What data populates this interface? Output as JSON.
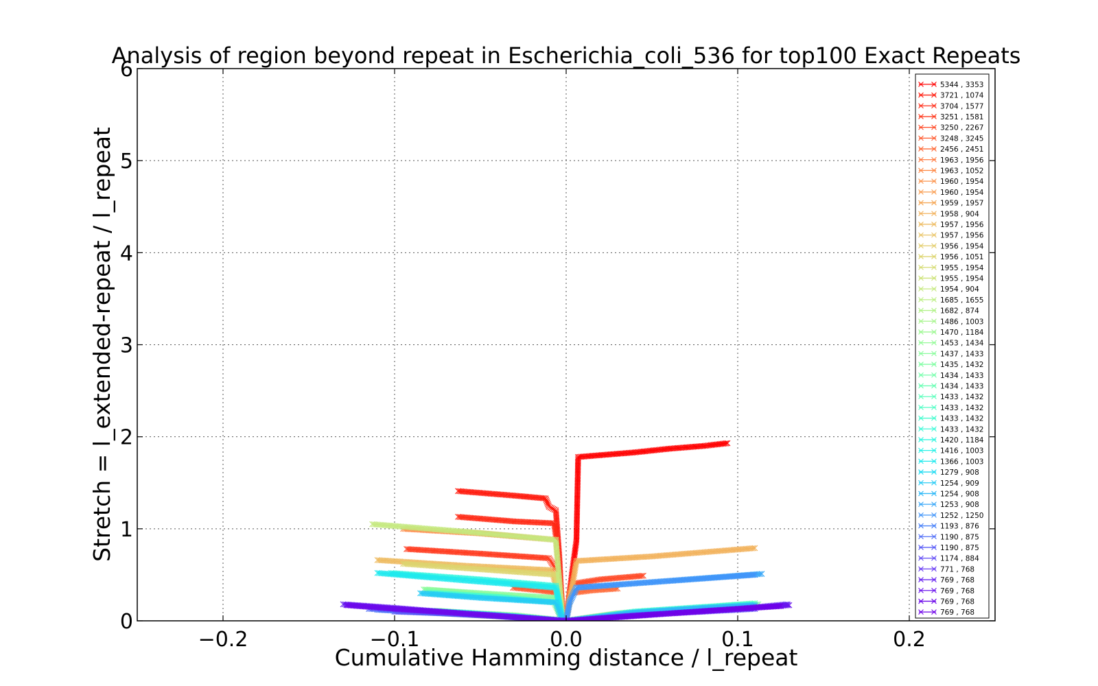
{
  "chart_data": {
    "type": "line",
    "title": "Analysis of region beyond repeat in Escherichia_coli_536 for top100 Exact Repeats",
    "xlabel": "Cumulative Hamming distance / l_repeat",
    "ylabel": "Stretch =  l_extended-repeat / l_repeat",
    "xlim": [
      -0.25,
      0.25
    ],
    "ylim": [
      0,
      6
    ],
    "xticks": [
      -0.2,
      -0.1,
      0.0,
      0.1,
      0.2
    ],
    "xtick_labels": [
      "−0.2",
      "−0.1",
      "0.0",
      "0.1",
      "0.2"
    ],
    "yticks": [
      0,
      1,
      2,
      3,
      4,
      5,
      6
    ],
    "ytick_labels": [
      "0",
      "1",
      "2",
      "3",
      "4",
      "5",
      "6"
    ],
    "grid": true,
    "legend_position": "right",
    "marker": "x",
    "series": [
      {
        "name": "5344 , 3353",
        "color": "#ff0000",
        "points": [
          [
            0.0,
            0.0
          ],
          [
            0.002,
            0.3
          ],
          [
            0.004,
            0.6
          ],
          [
            0.006,
            0.87
          ],
          [
            0.007,
            1.78
          ],
          [
            0.02,
            1.8
          ],
          [
            0.04,
            1.83
          ],
          [
            0.06,
            1.87
          ],
          [
            0.08,
            1.9
          ],
          [
            0.094,
            1.93
          ]
        ]
      },
      {
        "name": "3721 , 1074",
        "color": "#ff1a0d",
        "points": [
          [
            -0.002,
            0.0
          ],
          [
            -0.004,
            0.7
          ],
          [
            -0.006,
            1.2
          ],
          [
            -0.01,
            1.24
          ],
          [
            -0.012,
            1.33
          ],
          [
            -0.03,
            1.36
          ],
          [
            -0.063,
            1.41
          ]
        ]
      },
      {
        "name": "3704 , 1577",
        "color": "#ff2a15",
        "points": [
          [
            -0.002,
            0.0
          ],
          [
            -0.005,
            0.8
          ],
          [
            -0.007,
            1.06
          ],
          [
            -0.03,
            1.08
          ],
          [
            -0.063,
            1.13
          ]
        ]
      },
      {
        "name": "3251 , 1581",
        "color": "#ff3a1e",
        "points": [
          [
            -0.002,
            0.0
          ],
          [
            -0.004,
            0.5
          ],
          [
            -0.01,
            0.68
          ],
          [
            -0.05,
            0.73
          ],
          [
            -0.093,
            0.78
          ]
        ]
      },
      {
        "name": "3250 , 2267",
        "color": "#ff4a27",
        "points": [
          [
            0.0,
            0.0
          ],
          [
            0.003,
            0.4
          ],
          [
            0.02,
            0.45
          ],
          [
            0.045,
            0.49
          ]
        ]
      },
      {
        "name": "3248 , 3245",
        "color": "#ff5a2f",
        "points": [
          [
            -0.001,
            0.0
          ],
          [
            -0.003,
            0.3
          ],
          [
            -0.015,
            0.33
          ],
          [
            -0.031,
            0.36
          ]
        ]
      },
      {
        "name": "2456 , 2451",
        "color": "#ff6a38",
        "points": [
          [
            0.0,
            0.0
          ],
          [
            0.002,
            0.3
          ],
          [
            0.015,
            0.33
          ],
          [
            0.03,
            0.35
          ]
        ]
      },
      {
        "name": "1963 , 1956",
        "color": "#ff7a40",
        "points": [
          [
            0.0,
            0.0
          ],
          [
            0.02,
            0.05
          ],
          [
            0.04,
            0.07
          ],
          [
            0.064,
            0.09
          ]
        ]
      },
      {
        "name": "1963 , 1052",
        "color": "#fe8a48",
        "points": [
          [
            -0.002,
            0.0
          ],
          [
            -0.006,
            0.88
          ],
          [
            -0.05,
            0.95
          ],
          [
            -0.095,
            1.0
          ]
        ]
      },
      {
        "name": "1960 , 1954",
        "color": "#fc944d",
        "points": [
          [
            0.0,
            0.0
          ],
          [
            -0.02,
            0.03
          ],
          [
            -0.05,
            0.06
          ],
          [
            -0.07,
            0.08
          ]
        ]
      },
      {
        "name": "1960 , 1954",
        "color": "#f99e52",
        "points": [
          [
            0.0,
            0.0
          ],
          [
            0.02,
            0.05
          ],
          [
            0.04,
            0.08
          ],
          [
            0.065,
            0.1
          ]
        ]
      },
      {
        "name": "1959 , 1957",
        "color": "#f6a857",
        "points": [
          [
            0.0,
            0.0
          ],
          [
            -0.02,
            0.03
          ],
          [
            -0.045,
            0.06
          ],
          [
            -0.068,
            0.08
          ]
        ]
      },
      {
        "name": "1958 , 904",
        "color": "#f2b25c",
        "points": [
          [
            0.0,
            0.0
          ],
          [
            0.006,
            0.65
          ],
          [
            0.05,
            0.7
          ],
          [
            0.11,
            0.79
          ]
        ]
      },
      {
        "name": "1957 , 1956",
        "color": "#eebb61",
        "points": [
          [
            -0.002,
            0.0
          ],
          [
            -0.008,
            0.55
          ],
          [
            -0.06,
            0.6
          ],
          [
            -0.11,
            0.66
          ]
        ]
      },
      {
        "name": "1957 , 1956",
        "color": "#e9c466",
        "points": [
          [
            0.0,
            0.0
          ],
          [
            0.03,
            0.08
          ],
          [
            0.06,
            0.11
          ],
          [
            0.09,
            0.14
          ]
        ]
      },
      {
        "name": "1956 , 1954",
        "color": "#e3cd6b",
        "points": [
          [
            0.0,
            0.0
          ],
          [
            -0.03,
            0.04
          ],
          [
            -0.06,
            0.07
          ],
          [
            -0.09,
            0.1
          ]
        ]
      },
      {
        "name": "1956 , 1051",
        "color": "#ddd570",
        "points": [
          [
            -0.002,
            0.0
          ],
          [
            -0.006,
            0.5
          ],
          [
            -0.05,
            0.56
          ],
          [
            -0.095,
            0.62
          ]
        ]
      },
      {
        "name": "1955 , 1954",
        "color": "#d6dc75",
        "points": [
          [
            0.0,
            0.0
          ],
          [
            0.03,
            0.07
          ],
          [
            0.06,
            0.1
          ],
          [
            0.095,
            0.13
          ]
        ]
      },
      {
        "name": "1955 , 1954",
        "color": "#cee37a",
        "points": [
          [
            0.0,
            0.0
          ],
          [
            -0.03,
            0.05
          ],
          [
            -0.06,
            0.08
          ],
          [
            -0.085,
            0.1
          ]
        ]
      },
      {
        "name": "1954 , 904",
        "color": "#c5e97f",
        "points": [
          [
            -0.002,
            0.0
          ],
          [
            -0.006,
            0.88
          ],
          [
            -0.06,
            0.97
          ],
          [
            -0.113,
            1.05
          ]
        ]
      },
      {
        "name": "1685 , 1655",
        "color": "#bcee84",
        "points": [
          [
            0.0,
            0.0
          ],
          [
            0.03,
            0.08
          ],
          [
            0.07,
            0.12
          ],
          [
            0.1,
            0.15
          ]
        ]
      },
      {
        "name": "1682 , 874",
        "color": "#b2f289",
        "points": [
          [
            0.0,
            0.0
          ],
          [
            -0.03,
            0.06
          ],
          [
            -0.06,
            0.09
          ],
          [
            -0.075,
            0.11
          ]
        ]
      },
      {
        "name": "1486 , 1003",
        "color": "#a8f58e",
        "points": [
          [
            -0.002,
            0.0
          ],
          [
            -0.007,
            0.2
          ],
          [
            -0.04,
            0.27
          ],
          [
            -0.082,
            0.34
          ]
        ]
      },
      {
        "name": "1470 , 1184",
        "color": "#9ef893",
        "points": [
          [
            0.0,
            0.0
          ],
          [
            0.04,
            0.08
          ],
          [
            0.08,
            0.13
          ],
          [
            0.11,
            0.17
          ]
        ]
      },
      {
        "name": "1453 , 1434",
        "color": "#94fa98",
        "points": [
          [
            0.0,
            0.0
          ],
          [
            -0.03,
            0.06
          ],
          [
            -0.06,
            0.09
          ],
          [
            -0.08,
            0.1
          ]
        ]
      },
      {
        "name": "1437 , 1433",
        "color": "#8afc9d",
        "points": [
          [
            -0.002,
            0.0
          ],
          [
            -0.006,
            0.25
          ],
          [
            -0.05,
            0.3
          ],
          [
            -0.083,
            0.34
          ]
        ]
      },
      {
        "name": "1435 , 1432",
        "color": "#7ffda2",
        "points": [
          [
            0.0,
            0.0
          ],
          [
            0.04,
            0.09
          ],
          [
            0.08,
            0.14
          ],
          [
            0.112,
            0.18
          ]
        ]
      },
      {
        "name": "1434 , 1433",
        "color": "#74feab",
        "points": [
          [
            0.0,
            0.0
          ],
          [
            -0.03,
            0.05
          ],
          [
            -0.06,
            0.09
          ],
          [
            -0.075,
            0.1
          ]
        ]
      },
      {
        "name": "1434 , 1433",
        "color": "#69feb4",
        "points": [
          [
            -0.002,
            0.0
          ],
          [
            -0.006,
            0.2
          ],
          [
            -0.05,
            0.27
          ],
          [
            -0.08,
            0.31
          ]
        ]
      },
      {
        "name": "1433 , 1432",
        "color": "#5efebd",
        "points": [
          [
            0.0,
            0.0
          ],
          [
            0.04,
            0.1
          ],
          [
            0.08,
            0.15
          ],
          [
            0.11,
            0.19
          ]
        ]
      },
      {
        "name": "1433 , 1432",
        "color": "#53fdc6",
        "points": [
          [
            0.0,
            0.0
          ],
          [
            -0.03,
            0.05
          ],
          [
            -0.06,
            0.08
          ],
          [
            -0.072,
            0.09
          ]
        ]
      },
      {
        "name": "1433 , 1432",
        "color": "#48fbcf",
        "points": [
          [
            -0.002,
            0.0
          ],
          [
            -0.006,
            0.2
          ],
          [
            -0.04,
            0.26
          ],
          [
            -0.078,
            0.3
          ]
        ]
      },
      {
        "name": "1433 , 1432",
        "color": "#3df9d8",
        "points": [
          [
            0.0,
            0.0
          ],
          [
            0.04,
            0.1
          ],
          [
            0.08,
            0.15
          ],
          [
            0.108,
            0.18
          ]
        ]
      },
      {
        "name": "1420 , 1184",
        "color": "#32f5e0",
        "points": [
          [
            -0.002,
            0.0
          ],
          [
            -0.006,
            0.38
          ],
          [
            -0.05,
            0.45
          ],
          [
            -0.102,
            0.52
          ]
        ]
      },
      {
        "name": "1416 , 1003",
        "color": "#27f1e7",
        "points": [
          [
            0.0,
            0.0
          ],
          [
            -0.03,
            0.05
          ],
          [
            -0.06,
            0.09
          ],
          [
            -0.08,
            0.11
          ]
        ]
      },
      {
        "name": "1366 , 1003",
        "color": "#1fe9ee",
        "points": [
          [
            -0.002,
            0.0
          ],
          [
            -0.006,
            0.36
          ],
          [
            -0.06,
            0.44
          ],
          [
            -0.11,
            0.52
          ]
        ]
      },
      {
        "name": "1279 , 908",
        "color": "#1fdbf2",
        "points": [
          [
            0.0,
            0.0
          ],
          [
            0.04,
            0.08
          ],
          [
            0.08,
            0.13
          ],
          [
            0.105,
            0.16
          ]
        ]
      },
      {
        "name": "1254 , 909",
        "color": "#26cbf5",
        "points": [
          [
            -0.002,
            0.0
          ],
          [
            -0.006,
            0.2
          ],
          [
            -0.05,
            0.25
          ],
          [
            -0.085,
            0.3
          ]
        ]
      },
      {
        "name": "1254 , 908",
        "color": "#2fb9f7",
        "points": [
          [
            0.0,
            0.0
          ],
          [
            0.04,
            0.09
          ],
          [
            0.08,
            0.14
          ],
          [
            0.11,
            0.17
          ]
        ]
      },
      {
        "name": "1253 , 908",
        "color": "#38a7f8",
        "points": [
          [
            0.0,
            0.0
          ],
          [
            0.002,
            0.2
          ],
          [
            0.006,
            0.36
          ],
          [
            0.05,
            0.42
          ],
          [
            0.114,
            0.51
          ]
        ]
      },
      {
        "name": "1252 , 1250",
        "color": "#4295f9",
        "points": [
          [
            0.0,
            0.0
          ],
          [
            0.002,
            0.2
          ],
          [
            0.006,
            0.36
          ],
          [
            0.05,
            0.42
          ],
          [
            0.11,
            0.5
          ]
        ]
      },
      {
        "name": "1193 , 876",
        "color": "#4a82f9",
        "points": [
          [
            0.0,
            0.0
          ],
          [
            -0.04,
            0.05
          ],
          [
            -0.08,
            0.09
          ],
          [
            -0.11,
            0.12
          ]
        ]
      },
      {
        "name": "1190 , 875",
        "color": "#526ff8",
        "points": [
          [
            0.0,
            0.0
          ],
          [
            -0.04,
            0.06
          ],
          [
            -0.09,
            0.11
          ],
          [
            -0.115,
            0.13
          ]
        ]
      },
      {
        "name": "1190 , 875",
        "color": "#595cf7",
        "points": [
          [
            0.0,
            0.0
          ],
          [
            -0.04,
            0.05
          ],
          [
            -0.07,
            0.08
          ],
          [
            -0.1,
            0.1
          ]
        ]
      },
      {
        "name": "1174 , 884",
        "color": "#5f49f5",
        "points": [
          [
            0.0,
            0.0
          ],
          [
            0.04,
            0.06
          ],
          [
            0.08,
            0.1
          ],
          [
            0.11,
            0.13
          ]
        ]
      },
      {
        "name": "771 , 768",
        "color": "#6436f3",
        "points": [
          [
            0.0,
            0.0
          ],
          [
            0.06,
            0.08
          ],
          [
            0.1,
            0.13
          ],
          [
            0.129,
            0.18
          ]
        ]
      },
      {
        "name": "769 , 768",
        "color": "#6824f0",
        "points": [
          [
            0.0,
            0.0
          ],
          [
            -0.06,
            0.08
          ],
          [
            -0.1,
            0.14
          ],
          [
            -0.13,
            0.18
          ]
        ]
      },
      {
        "name": "769 , 768",
        "color": "#6b14ed",
        "points": [
          [
            0.0,
            0.0
          ],
          [
            0.06,
            0.08
          ],
          [
            0.1,
            0.13
          ],
          [
            0.13,
            0.17
          ]
        ]
      },
      {
        "name": "769 , 768",
        "color": "#6d08ea",
        "points": [
          [
            0.0,
            0.0
          ],
          [
            -0.06,
            0.08
          ],
          [
            -0.1,
            0.13
          ],
          [
            -0.128,
            0.17
          ]
        ]
      },
      {
        "name": "769 , 768",
        "color": "#6e00e8",
        "points": [
          [
            0.0,
            0.0
          ],
          [
            0.06,
            0.08
          ],
          [
            0.1,
            0.13
          ],
          [
            0.125,
            0.16
          ]
        ]
      }
    ]
  }
}
